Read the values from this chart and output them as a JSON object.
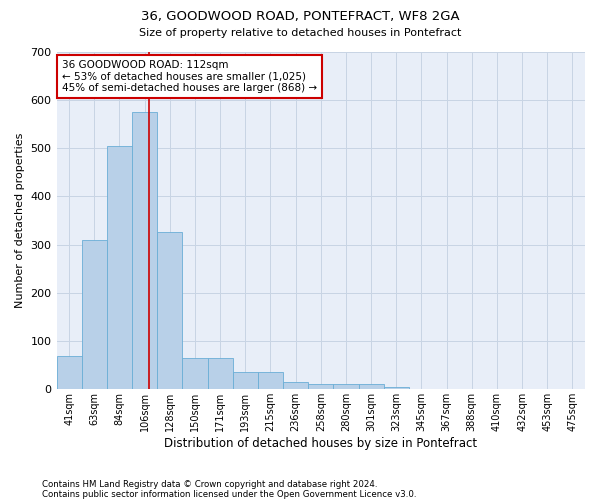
{
  "title1": "36, GOODWOOD ROAD, PONTEFRACT, WF8 2GA",
  "title2": "Size of property relative to detached houses in Pontefract",
  "xlabel": "Distribution of detached houses by size in Pontefract",
  "ylabel": "Number of detached properties",
  "footnote1": "Contains HM Land Registry data © Crown copyright and database right 2024.",
  "footnote2": "Contains public sector information licensed under the Open Government Licence v3.0.",
  "categories": [
    "41sqm",
    "63sqm",
    "84sqm",
    "106sqm",
    "128sqm",
    "150sqm",
    "171sqm",
    "193sqm",
    "215sqm",
    "236sqm",
    "258sqm",
    "280sqm",
    "301sqm",
    "323sqm",
    "345sqm",
    "367sqm",
    "388sqm",
    "410sqm",
    "432sqm",
    "453sqm",
    "475sqm"
  ],
  "values": [
    70,
    310,
    505,
    575,
    325,
    65,
    65,
    35,
    35,
    15,
    12,
    10,
    10,
    5,
    0,
    0,
    0,
    0,
    0,
    0,
    0
  ],
  "bar_color": "#b8d0e8",
  "bar_edge_color": "#6aaed6",
  "grid_color": "#c8d4e4",
  "background_color": "#e8eef8",
  "property_line_x": 3.18,
  "annotation_text1": "36 GOODWOOD ROAD: 112sqm",
  "annotation_text2": "← 53% of detached houses are smaller (1,025)",
  "annotation_text3": "45% of semi-detached houses are larger (868) →",
  "annotation_box_color": "#ffffff",
  "annotation_border_color": "#cc0000",
  "vline_color": "#cc0000",
  "ylim": [
    0,
    700
  ],
  "yticks": [
    0,
    100,
    200,
    300,
    400,
    500,
    600,
    700
  ]
}
